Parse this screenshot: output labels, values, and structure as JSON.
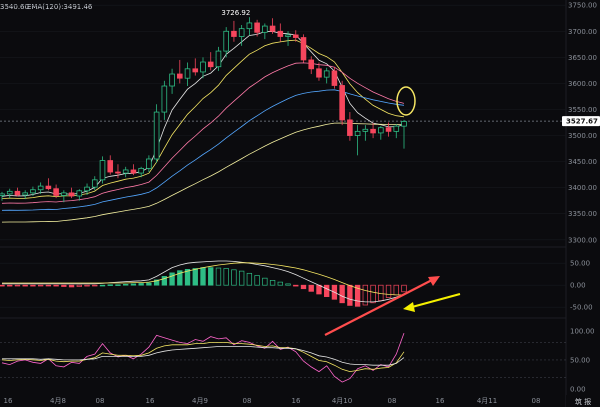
{
  "chart_data": {
    "type": "candlestick",
    "legend": {
      "label_1": "3540.60",
      "label_2": "EMA(120):3491.46",
      "label_2_color": "#f0f0f0"
    },
    "peak_label": "3726.92",
    "current_price_label": "3527.67",
    "price_axis": {
      "ticks": [
        3750.0,
        3700.0,
        3650.0,
        3600.0,
        3550.0,
        3500.0,
        3450.0,
        3400.0,
        3350.0,
        3300.0
      ],
      "tick_labels": [
        "3750.00",
        "3700.00",
        "3650.00",
        "3600.00",
        "3550.00",
        "3500.00",
        "3450.00",
        "3400.00",
        "3350.00",
        "3300.00"
      ],
      "range": [
        3290,
        3760
      ]
    },
    "macd_axis": {
      "tick_labels": [
        "50.00",
        "0.00",
        "-50.00"
      ],
      "ticks": [
        50,
        0,
        -50
      ],
      "range": [
        -70,
        80
      ]
    },
    "rsi_axis": {
      "tick_labels": [
        "100.00",
        "50.00",
        "0.00"
      ],
      "ticks": [
        100,
        50,
        0
      ],
      "range": [
        -5,
        115
      ]
    },
    "x_axis": {
      "labels": [
        "16",
        "4月8",
        "08",
        "16",
        "4月9",
        "08",
        "16",
        "4月10",
        "08",
        "16",
        "4月11",
        "08"
      ]
    },
    "footer_label": "筑 报",
    "candles": [
      [
        3385,
        3392,
        3375,
        3388
      ],
      [
        3388,
        3398,
        3380,
        3393
      ],
      [
        3393,
        3400,
        3383,
        3386
      ],
      [
        3386,
        3395,
        3378,
        3390
      ],
      [
        3390,
        3402,
        3384,
        3396
      ],
      [
        3396,
        3410,
        3388,
        3403
      ],
      [
        3403,
        3418,
        3395,
        3398
      ],
      [
        3398,
        3406,
        3380,
        3385
      ],
      [
        3385,
        3395,
        3372,
        3390
      ],
      [
        3390,
        3400,
        3380,
        3384
      ],
      [
        3384,
        3397,
        3375,
        3394
      ],
      [
        3394,
        3408,
        3386,
        3401
      ],
      [
        3401,
        3422,
        3395,
        3415
      ],
      [
        3415,
        3460,
        3408,
        3452
      ],
      [
        3452,
        3462,
        3425,
        3430
      ],
      [
        3430,
        3445,
        3418,
        3428
      ],
      [
        3428,
        3440,
        3420,
        3434
      ],
      [
        3434,
        3445,
        3424,
        3428
      ],
      [
        3428,
        3440,
        3420,
        3437
      ],
      [
        3437,
        3462,
        3430,
        3455
      ],
      [
        3455,
        3560,
        3448,
        3545
      ],
      [
        3545,
        3605,
        3530,
        3595
      ],
      [
        3595,
        3628,
        3580,
        3618
      ],
      [
        3618,
        3645,
        3600,
        3610
      ],
      [
        3610,
        3640,
        3595,
        3628
      ],
      [
        3628,
        3648,
        3615,
        3622
      ],
      [
        3622,
        3650,
        3610,
        3641
      ],
      [
        3641,
        3660,
        3625,
        3632
      ],
      [
        3632,
        3670,
        3624,
        3662
      ],
      [
        3662,
        3708,
        3650,
        3700
      ],
      [
        3700,
        3720,
        3680,
        3690
      ],
      [
        3690,
        3712,
        3672,
        3705
      ],
      [
        3705,
        3727,
        3692,
        3716
      ],
      [
        3716,
        3722,
        3690,
        3698
      ],
      [
        3698,
        3715,
        3685,
        3710
      ],
      [
        3710,
        3725,
        3695,
        3700
      ],
      [
        3700,
        3715,
        3680,
        3690
      ],
      [
        3690,
        3700,
        3672,
        3693
      ],
      [
        3693,
        3702,
        3680,
        3688
      ],
      [
        3688,
        3694,
        3640,
        3645
      ],
      [
        3645,
        3652,
        3618,
        3628
      ],
      [
        3628,
        3640,
        3605,
        3612
      ],
      [
        3612,
        3630,
        3600,
        3624
      ],
      [
        3624,
        3632,
        3590,
        3596
      ],
      [
        3596,
        3605,
        3520,
        3530
      ],
      [
        3530,
        3545,
        3490,
        3500
      ],
      [
        3500,
        3520,
        3462,
        3508
      ],
      [
        3508,
        3520,
        3490,
        3512
      ],
      [
        3512,
        3524,
        3495,
        3505
      ],
      [
        3505,
        3518,
        3492,
        3515
      ],
      [
        3515,
        3525,
        3498,
        3508
      ],
      [
        3508,
        3522,
        3495,
        3518
      ],
      [
        3518,
        3530,
        3475,
        3527
      ]
    ],
    "macd_hist": [
      -2,
      -2,
      -1,
      -2,
      -2,
      -1,
      -1,
      -2,
      -3,
      -4,
      -3,
      -2,
      -1,
      0,
      1,
      1,
      2,
      3,
      4,
      5,
      12,
      20,
      28,
      33,
      36,
      38,
      40,
      40,
      39,
      38,
      35,
      32,
      27,
      22,
      16,
      11,
      7,
      3,
      -2,
      -8,
      -14,
      -20,
      -26,
      -32,
      -40,
      -46,
      -48,
      -45,
      -40,
      -35,
      -28,
      -22,
      -15
    ],
    "macd_dif": [
      3,
      3,
      3,
      3,
      3,
      3,
      3,
      3,
      3,
      3,
      3,
      3,
      3,
      4,
      6,
      7,
      8,
      9,
      10,
      12,
      20,
      30,
      40,
      46,
      50,
      52,
      53,
      54,
      55,
      55,
      54,
      52,
      50,
      47,
      44,
      40,
      36,
      31,
      24,
      16,
      8,
      0,
      -8,
      -16,
      -25,
      -32,
      -36,
      -38,
      -38,
      -36,
      -32,
      -27,
      -20
    ],
    "macd_dea": [
      5,
      5,
      5,
      5,
      5,
      5,
      5,
      5,
      5,
      5,
      5,
      5,
      5,
      5,
      5,
      5,
      5,
      6,
      6,
      7,
      10,
      15,
      21,
      27,
      32,
      36,
      40,
      43,
      46,
      48,
      50,
      51,
      51,
      50,
      49,
      47,
      45,
      42,
      39,
      35,
      30,
      25,
      19,
      13,
      6,
      -1,
      -7,
      -12,
      -16,
      -19,
      -21,
      -22,
      -22
    ],
    "rsi_1": [
      45,
      42,
      48,
      50,
      46,
      44,
      52,
      40,
      38,
      46,
      44,
      56,
      60,
      78,
      62,
      55,
      58,
      52,
      60,
      72,
      92,
      88,
      84,
      80,
      78,
      85,
      82,
      90,
      86,
      88,
      76,
      83,
      80,
      74,
      70,
      82,
      68,
      72,
      64,
      48,
      38,
      30,
      40,
      22,
      12,
      18,
      35,
      40,
      32,
      42,
      38,
      60,
      96
    ],
    "rsi_2": [
      50,
      49,
      50,
      51,
      50,
      49,
      51,
      48,
      47,
      48,
      48,
      51,
      54,
      62,
      60,
      58,
      58,
      57,
      58,
      62,
      70,
      74,
      76,
      76,
      76,
      78,
      78,
      80,
      80,
      80,
      78,
      78,
      77,
      75,
      73,
      74,
      71,
      71,
      69,
      63,
      56,
      49,
      47,
      41,
      34,
      30,
      32,
      35,
      34,
      36,
      37,
      45,
      64
    ],
    "rsi_3": [
      52,
      52,
      52,
      52,
      52,
      51,
      52,
      51,
      50,
      50,
      50,
      51,
      52,
      56,
      56,
      56,
      56,
      56,
      56,
      58,
      62,
      65,
      67,
      68,
      69,
      70,
      71,
      72,
      73,
      73,
      73,
      73,
      73,
      72,
      71,
      71,
      70,
      70,
      69,
      66,
      62,
      57,
      55,
      51,
      46,
      43,
      42,
      42,
      41,
      41,
      41,
      44,
      54
    ]
  }
}
